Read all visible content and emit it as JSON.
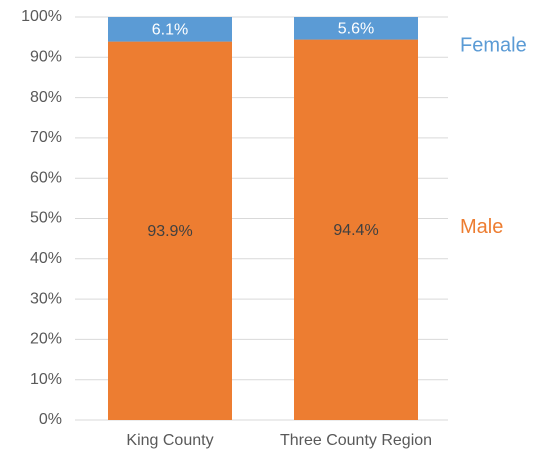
{
  "chart_data": {
    "type": "stacked_bar",
    "categories": [
      "King County",
      "Three County Region"
    ],
    "series": [
      {
        "name": "Male",
        "color": "#ed7d31",
        "values": [
          93.9,
          94.4
        ],
        "value_labels": [
          "93.9%",
          "94.4%"
        ]
      },
      {
        "name": "Female",
        "color": "#5b9bd5",
        "values": [
          6.1,
          5.6
        ],
        "value_labels": [
          "6.1%",
          "5.6%"
        ]
      }
    ],
    "ylim": [
      0,
      100
    ],
    "yticks": [
      {
        "value": 0,
        "label": "0%"
      },
      {
        "value": 10,
        "label": "10%"
      },
      {
        "value": 20,
        "label": "20%"
      },
      {
        "value": 30,
        "label": "30%"
      },
      {
        "value": 40,
        "label": "40%"
      },
      {
        "value": 50,
        "label": "50%"
      },
      {
        "value": 60,
        "label": "60%"
      },
      {
        "value": 70,
        "label": "70%"
      },
      {
        "value": 80,
        "label": "80%"
      },
      {
        "value": 90,
        "label": "90%"
      },
      {
        "value": 100,
        "label": "100%"
      }
    ],
    "grid": true,
    "legend": "right"
  }
}
